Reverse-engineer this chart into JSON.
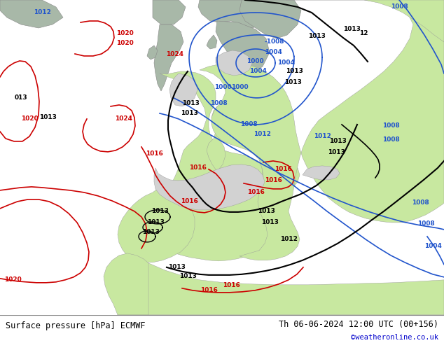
{
  "title_left": "Surface pressure [hPa] ECMWF",
  "title_right": "Th 06-06-2024 12:00 UTC (00+156)",
  "credit": "©weatheronline.co.uk",
  "bg_ocean": "#d2d2d2",
  "bg_land": "#c8e8a0",
  "bg_land_gray": "#a8b8a8",
  "footer_bg": "#ffffff",
  "text_color": "#000000",
  "credit_color": "#0000cc",
  "c_black": "#000000",
  "c_red": "#cc0000",
  "c_blue": "#2255cc",
  "label_fontsize": 6.5,
  "footer_fontsize": 8.5
}
